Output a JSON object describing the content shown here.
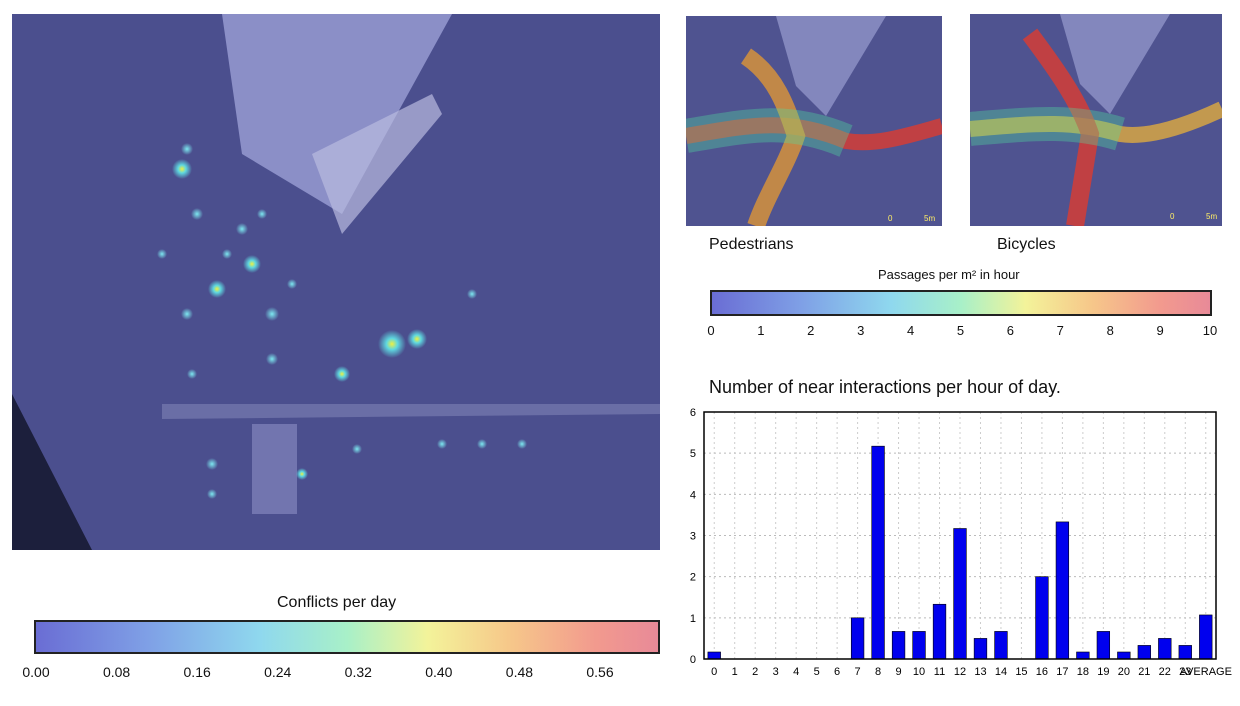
{
  "heatmap_panel": {
    "colorbar_label": "Conflicts per day",
    "colorbar_ticks": [
      "0.00",
      "0.08",
      "0.16",
      "0.24",
      "0.32",
      "0.40",
      "0.48",
      "0.56"
    ]
  },
  "small_maps": {
    "left_caption": "Pedestrians",
    "right_caption": "Bicycles",
    "scale_label_left": "0",
    "scale_label_right": "5m",
    "colorbar_label": "Passages per m² in hour",
    "colorbar_ticks": [
      "0",
      "1",
      "2",
      "3",
      "4",
      "5",
      "6",
      "7",
      "8",
      "9",
      "10"
    ]
  },
  "chart_data": {
    "type": "bar",
    "title": "Number of near interactions per hour of day.",
    "xlabel": "",
    "ylabel": "",
    "ylim": [
      0,
      6
    ],
    "yticks": [
      "0",
      "1",
      "2",
      "3",
      "4",
      "5",
      "6"
    ],
    "grid": true,
    "bar_color": "#0000ee",
    "categories": [
      "0",
      "1",
      "2",
      "3",
      "4",
      "5",
      "6",
      "7",
      "8",
      "9",
      "10",
      "11",
      "12",
      "13",
      "14",
      "15",
      "16",
      "17",
      "18",
      "19",
      "20",
      "21",
      "22",
      "23",
      "AVERAGE"
    ],
    "values": [
      0.17,
      0,
      0,
      0,
      0,
      0,
      0,
      1.0,
      5.17,
      0.67,
      0.67,
      1.33,
      3.17,
      0.5,
      0.67,
      0,
      2.0,
      3.33,
      0.17,
      0.67,
      0.17,
      0.33,
      0.5,
      0.33,
      1.07
    ]
  }
}
